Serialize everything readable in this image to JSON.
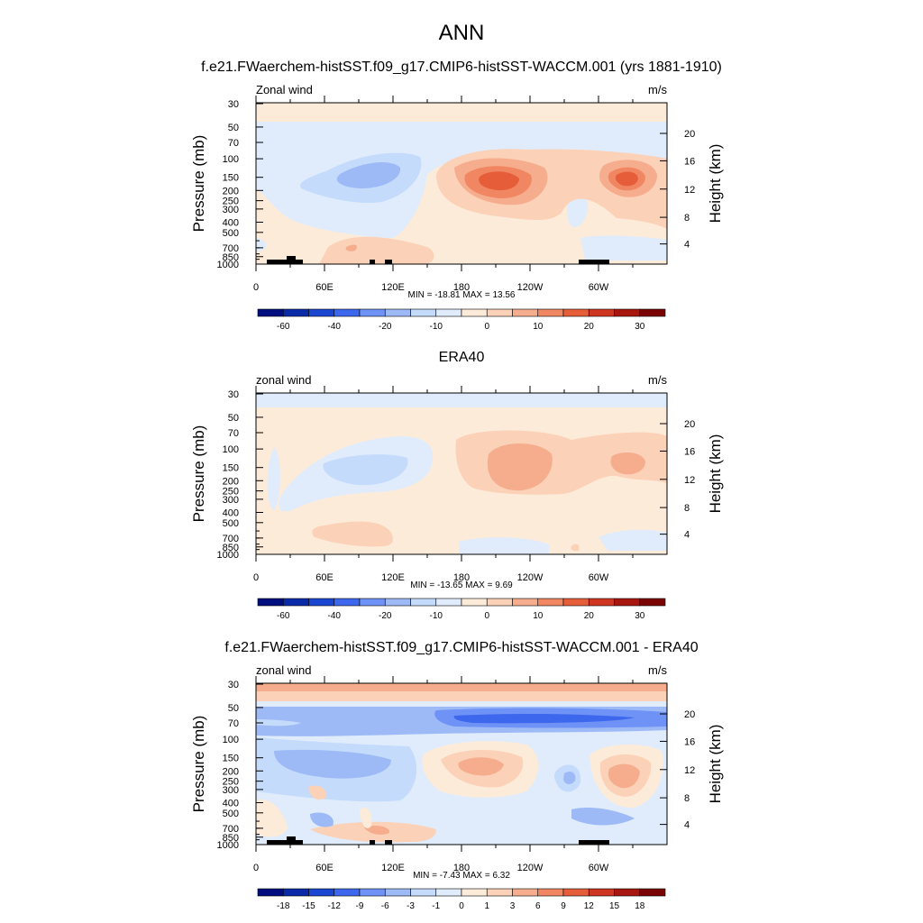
{
  "page_title": "ANN",
  "colors": {
    "levels_cmap": [
      "#000e7f",
      "#0a2aa8",
      "#1b46d2",
      "#3d67ec",
      "#6e92f5",
      "#9dbaf7",
      "#c4dbfb",
      "#e0ecfc",
      "#fdebd9",
      "#fbd1b8",
      "#f6ad8e",
      "#f08762",
      "#e65d3a",
      "#cf3621",
      "#a8170f",
      "#7a0404"
    ]
  },
  "chart_data": [
    {
      "type": "heatmap",
      "title": "f.e21.FWaerchem-histSST.f09_g17.CMIP6-histSST-WACCM.001 (yrs 1881-1910)",
      "left_label": "Zonal wind",
      "right_label": "m/s",
      "ylabel": "Pressure (mb)",
      "ylabel_right": "Height (km)",
      "x_ticks": [
        "0",
        "60E",
        "120E",
        "180",
        "120W",
        "60W"
      ],
      "y_ticks": [
        "30",
        "50",
        "70",
        "100",
        "150",
        "200",
        "250",
        "300",
        "400",
        "500",
        "700",
        "850",
        "1000"
      ],
      "right_ticks": [
        "20",
        "16",
        "12",
        "8",
        "4"
      ],
      "stats": "MIN = -18.81  MAX =  13.56",
      "colorbar_labels": [
        "-60",
        "-40",
        "-20",
        "-10",
        "0",
        "10",
        "20",
        "30"
      ],
      "min": -18.81,
      "max": 13.56,
      "topography": true
    },
    {
      "type": "heatmap",
      "title": "ERA40",
      "left_label": "zonal wind",
      "right_label": "m/s",
      "ylabel": "Pressure (mb)",
      "ylabel_right": "Height (km)",
      "x_ticks": [
        "0",
        "60E",
        "120E",
        "180",
        "120W",
        "60W"
      ],
      "y_ticks": [
        "30",
        "50",
        "70",
        "100",
        "150",
        "200",
        "250",
        "300",
        "400",
        "500",
        "700",
        "850",
        "1000"
      ],
      "right_ticks": [
        "20",
        "16",
        "12",
        "8",
        "4"
      ],
      "stats": "MIN = -13.65  MAX =   9.69",
      "colorbar_labels": [
        "-60",
        "-40",
        "-20",
        "-10",
        "0",
        "10",
        "20",
        "30"
      ],
      "min": -13.65,
      "max": 9.69,
      "topography": false
    },
    {
      "type": "heatmap",
      "title": "f.e21.FWaerchem-histSST.f09_g17.CMIP6-histSST-WACCM.001 - ERA40",
      "left_label": "zonal wind",
      "right_label": "m/s",
      "ylabel": "Pressure (mb)",
      "ylabel_right": "Height (km)",
      "x_ticks": [
        "0",
        "60E",
        "120E",
        "180",
        "120W",
        "60W"
      ],
      "y_ticks": [
        "30",
        "50",
        "70",
        "100",
        "150",
        "200",
        "250",
        "300",
        "400",
        "500",
        "700",
        "850",
        "1000"
      ],
      "right_ticks": [
        "20",
        "16",
        "12",
        "8",
        "4"
      ],
      "stats": "MIN =  -7.43  MAX =   6.32",
      "colorbar_labels": [
        "-18",
        "-15",
        "-12",
        "-9",
        "-6",
        "-3",
        "-1",
        "0",
        "1",
        "3",
        "6",
        "9",
        "12",
        "15",
        "18"
      ],
      "min": -7.43,
      "max": 6.32,
      "topography": true
    }
  ]
}
